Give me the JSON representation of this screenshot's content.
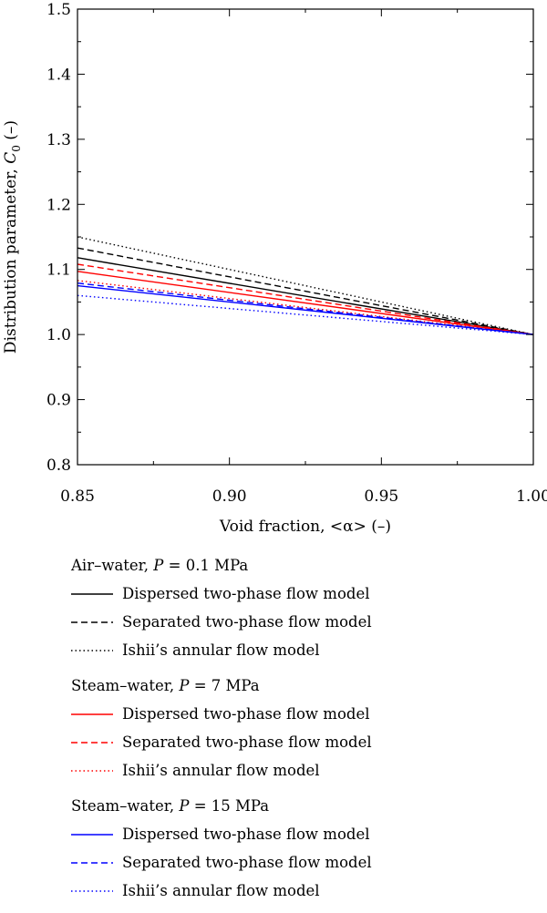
{
  "chart_data": {
    "type": "line",
    "xlabel": "Void fraction, <α> (–)",
    "ylabel": "Distribution parameter, C0 (–)",
    "ylabel_main": "Distribution parameter, ",
    "ylabel_sym": "C",
    "ylabel_sub": "0",
    "ylabel_unit": " (–)",
    "xlim": [
      0.85,
      1.0
    ],
    "ylim": [
      0.8,
      1.5
    ],
    "xticks": [
      0.85,
      0.9,
      0.95,
      1.0
    ],
    "xtick_labels": [
      "0.85",
      "0.90",
      "0.95",
      "1.00"
    ],
    "yticks": [
      0.8,
      0.9,
      1.0,
      1.1,
      1.2,
      1.3,
      1.4,
      1.5
    ],
    "ytick_labels": [
      "0.8",
      "0.9",
      "1.0",
      "1.1",
      "1.2",
      "1.3",
      "1.4",
      "1.5"
    ],
    "grid": false,
    "legend_position": "below",
    "groups": [
      {
        "title_prefix": "Air–water, ",
        "title_var": "P",
        "title_suffix": " = 0.1 MPa",
        "color": "#000000"
      },
      {
        "title_prefix": "Steam–water, ",
        "title_var": "P",
        "title_suffix": " = 7 MPa",
        "color": "#ff0000"
      },
      {
        "title_prefix": "Steam–water, ",
        "title_var": "P",
        "title_suffix": " = 15 MPa",
        "color": "#0000ff"
      }
    ],
    "series": [
      {
        "name": "Dispersed two-phase flow model",
        "group": 0,
        "color": "#000000",
        "dash": "solid",
        "x": [
          0.85,
          1.0
        ],
        "y": [
          1.118,
          1.0
        ]
      },
      {
        "name": "Separated two-phase flow model",
        "group": 0,
        "color": "#000000",
        "dash": "dashed",
        "x": [
          0.85,
          1.0
        ],
        "y": [
          1.133,
          1.0
        ]
      },
      {
        "name": "Ishii’s annular flow model",
        "group": 0,
        "color": "#000000",
        "dash": "dotted",
        "x": [
          0.85,
          1.0
        ],
        "y": [
          1.15,
          1.0
        ]
      },
      {
        "name": "Dispersed two-phase flow model",
        "group": 1,
        "color": "#ff0000",
        "dash": "solid",
        "x": [
          0.85,
          1.0
        ],
        "y": [
          1.097,
          1.0
        ]
      },
      {
        "name": "Separated two-phase flow model",
        "group": 1,
        "color": "#ff0000",
        "dash": "dashed",
        "x": [
          0.85,
          1.0
        ],
        "y": [
          1.108,
          1.0
        ]
      },
      {
        "name": "Ishii’s annular flow model",
        "group": 1,
        "color": "#ff0000",
        "dash": "dotted",
        "x": [
          0.85,
          1.0
        ],
        "y": [
          1.083,
          1.0
        ]
      },
      {
        "name": "Dispersed two-phase flow model",
        "group": 2,
        "color": "#0000ff",
        "dash": "solid",
        "x": [
          0.85,
          1.0
        ],
        "y": [
          1.075,
          1.0
        ]
      },
      {
        "name": "Separated two-phase flow model",
        "group": 2,
        "color": "#0000ff",
        "dash": "dashed",
        "x": [
          0.85,
          1.0
        ],
        "y": [
          1.079,
          1.0
        ]
      },
      {
        "name": "Ishii’s annular flow model",
        "group": 2,
        "color": "#0000ff",
        "dash": "dotted",
        "x": [
          0.85,
          1.0
        ],
        "y": [
          1.06,
          1.0
        ]
      }
    ]
  }
}
